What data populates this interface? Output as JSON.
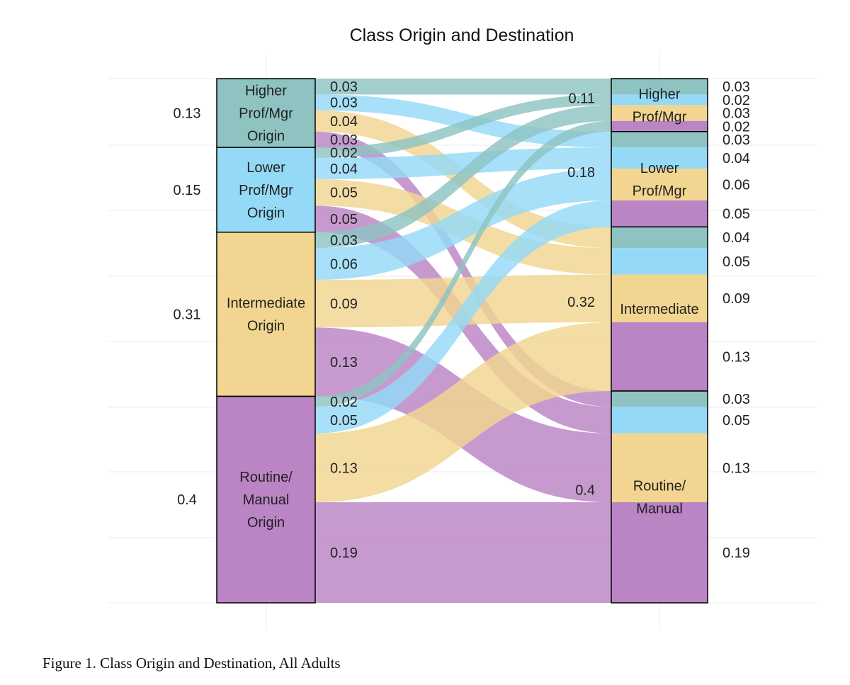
{
  "chart_data": {
    "type": "alluvial",
    "title": "Class Origin and Destination",
    "colors": {
      "Higher Prof/Mgr": "#8ec3c2",
      "Lower Prof/Mgr": "#94d9f6",
      "Intermediate": "#f2d590",
      "Routine/Manual": "#bb84c5"
    },
    "origins": [
      {
        "key": "Higher Prof/Mgr",
        "label_lines": [
          "Higher",
          "Prof/Mgr",
          "Origin"
        ],
        "total_label": "0.13"
      },
      {
        "key": "Lower Prof/Mgr",
        "label_lines": [
          "Lower",
          "Prof/Mgr",
          "Origin"
        ],
        "total_label": "0.15"
      },
      {
        "key": "Intermediate",
        "label_lines": [
          "Intermediate",
          "Origin"
        ],
        "total_label": "0.31"
      },
      {
        "key": "Routine/Manual",
        "label_lines": [
          "Routine/",
          "Manual",
          "Origin"
        ],
        "total_label": "0.4"
      }
    ],
    "destinations": [
      {
        "key": "Higher Prof/Mgr",
        "label_lines": [
          "Higher",
          "Prof/Mgr"
        ],
        "total_label": "0.11"
      },
      {
        "key": "Lower Prof/Mgr",
        "label_lines": [
          "Lower",
          "Prof/Mgr"
        ],
        "total_label": "0.18"
      },
      {
        "key": "Intermediate",
        "label_lines": [
          "Intermediate"
        ],
        "total_label": "0.32"
      },
      {
        "key": "Routine/Manual",
        "label_lines": [
          "Routine/",
          "Manual"
        ],
        "total_label": "0.4"
      }
    ],
    "flows": [
      {
        "origin": "Higher Prof/Mgr",
        "destination": "Higher Prof/Mgr",
        "value": 0.03,
        "origin_label": "0.03",
        "destination_label": "0.03"
      },
      {
        "origin": "Higher Prof/Mgr",
        "destination": "Lower Prof/Mgr",
        "value": 0.03,
        "origin_label": "0.03",
        "destination_label": "0.03"
      },
      {
        "origin": "Higher Prof/Mgr",
        "destination": "Intermediate",
        "value": 0.04,
        "origin_label": "0.04",
        "destination_label": "0.04"
      },
      {
        "origin": "Higher Prof/Mgr",
        "destination": "Routine/Manual",
        "value": 0.03,
        "origin_label": "0.03",
        "destination_label": "0.03"
      },
      {
        "origin": "Lower Prof/Mgr",
        "destination": "Higher Prof/Mgr",
        "value": 0.02,
        "origin_label": "0.02",
        "destination_label": "0.02"
      },
      {
        "origin": "Lower Prof/Mgr",
        "destination": "Lower Prof/Mgr",
        "value": 0.04,
        "origin_label": "0.04",
        "destination_label": "0.04"
      },
      {
        "origin": "Lower Prof/Mgr",
        "destination": "Intermediate",
        "value": 0.05,
        "origin_label": "0.05",
        "destination_label": "0.05"
      },
      {
        "origin": "Lower Prof/Mgr",
        "destination": "Routine/Manual",
        "value": 0.05,
        "origin_label": "0.05",
        "destination_label": "0.05"
      },
      {
        "origin": "Intermediate",
        "destination": "Higher Prof/Mgr",
        "value": 0.03,
        "origin_label": "0.03",
        "destination_label": "0.03"
      },
      {
        "origin": "Intermediate",
        "destination": "Lower Prof/Mgr",
        "value": 0.06,
        "origin_label": "0.06",
        "destination_label": "0.06"
      },
      {
        "origin": "Intermediate",
        "destination": "Intermediate",
        "value": 0.09,
        "origin_label": "0.09",
        "destination_label": "0.09"
      },
      {
        "origin": "Intermediate",
        "destination": "Routine/Manual",
        "value": 0.13,
        "origin_label": "0.13",
        "destination_label": "0.13"
      },
      {
        "origin": "Routine/Manual",
        "destination": "Higher Prof/Mgr",
        "value": 0.02,
        "origin_label": "0.02",
        "destination_label": "0.02"
      },
      {
        "origin": "Routine/Manual",
        "destination": "Lower Prof/Mgr",
        "value": 0.05,
        "origin_label": "0.05",
        "destination_label": "0.05"
      },
      {
        "origin": "Routine/Manual",
        "destination": "Intermediate",
        "value": 0.13,
        "origin_label": "0.13",
        "destination_label": "0.13"
      },
      {
        "origin": "Routine/Manual",
        "destination": "Routine/Manual",
        "value": 0.19,
        "origin_label": "0.19",
        "destination_label": "0.19"
      }
    ]
  },
  "caption": "Figure 1. Class Origin and Destination, All Adults"
}
